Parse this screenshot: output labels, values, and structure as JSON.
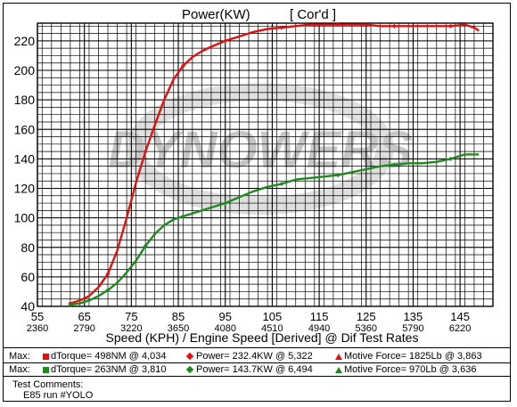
{
  "chart_data": {
    "type": "line",
    "title": "Power(KW)",
    "title_tag": "[ Cor'd ]",
    "xlabel": "Speed (KPH) / Engine Speed [Derived] @ Dif Test Rates",
    "x_ticks": [
      55,
      65,
      75,
      85,
      95,
      105,
      115,
      125,
      135,
      145
    ],
    "x_ticks_secondary": [
      "2360",
      "2790",
      "3220",
      "3650",
      "4080",
      "4510",
      "4940",
      "5360",
      "5790",
      "6220"
    ],
    "xlim": [
      55,
      152
    ],
    "y_ticks": [
      40,
      60,
      80,
      100,
      120,
      140,
      160,
      180,
      200,
      220
    ],
    "ylim": [
      40,
      232
    ],
    "grid": true,
    "watermark": "DYNOWERS",
    "series": [
      {
        "color": "#e01010",
        "marker": "diamond",
        "x": [
          62,
          64,
          66,
          68,
          70,
          72,
          74,
          76,
          78,
          80,
          82,
          84,
          86,
          88,
          90,
          92,
          95,
          98,
          101,
          104,
          107,
          110,
          113,
          116,
          119,
          122,
          125,
          128,
          131,
          134,
          137,
          140,
          143,
          146,
          148,
          149
        ],
        "y": [
          42,
          44,
          47,
          53,
          62,
          78,
          100,
          124,
          145,
          163,
          180,
          194,
          203,
          209,
          213,
          216,
          220,
          223,
          226,
          228,
          229,
          230,
          231,
          231,
          231,
          231,
          231,
          230,
          230,
          230,
          230,
          230,
          230,
          231,
          229,
          227
        ]
      },
      {
        "color": "#1e8a1e",
        "marker": "diamond",
        "x": [
          62,
          64,
          66,
          68,
          70,
          72,
          74,
          76,
          78,
          80,
          82,
          84,
          86,
          88,
          90,
          92,
          95,
          98,
          101,
          104,
          107,
          110,
          113,
          116,
          119,
          122,
          125,
          128,
          131,
          134,
          137,
          140,
          143,
          146,
          148,
          149
        ],
        "y": [
          41,
          42,
          44,
          47,
          51,
          56,
          63,
          71,
          81,
          89,
          95,
          99,
          101,
          103,
          105,
          107,
          110,
          114,
          118,
          121,
          123,
          126,
          127,
          128,
          129,
          131,
          133,
          135,
          136,
          137,
          137,
          138,
          140,
          143,
          143,
          143
        ]
      }
    ]
  },
  "legend": {
    "rows": [
      {
        "label": "Max:",
        "color": "#e01010",
        "torque": "dTorque= 498NM @ 4,034",
        "power": "Power= 232.4KW @ 5,322",
        "force": "Motive Force= 1825Lb @ 3,863"
      },
      {
        "label": "Max:",
        "color": "#1e8a1e",
        "torque": "dTorque= 263NM @ 3,810",
        "power": "Power= 143.7KW @ 6,494",
        "force": "Motive Force= 970Lb @ 3,636"
      }
    ]
  },
  "comments": {
    "heading": "Test Comments:",
    "text": "E85 run #YOLO"
  }
}
